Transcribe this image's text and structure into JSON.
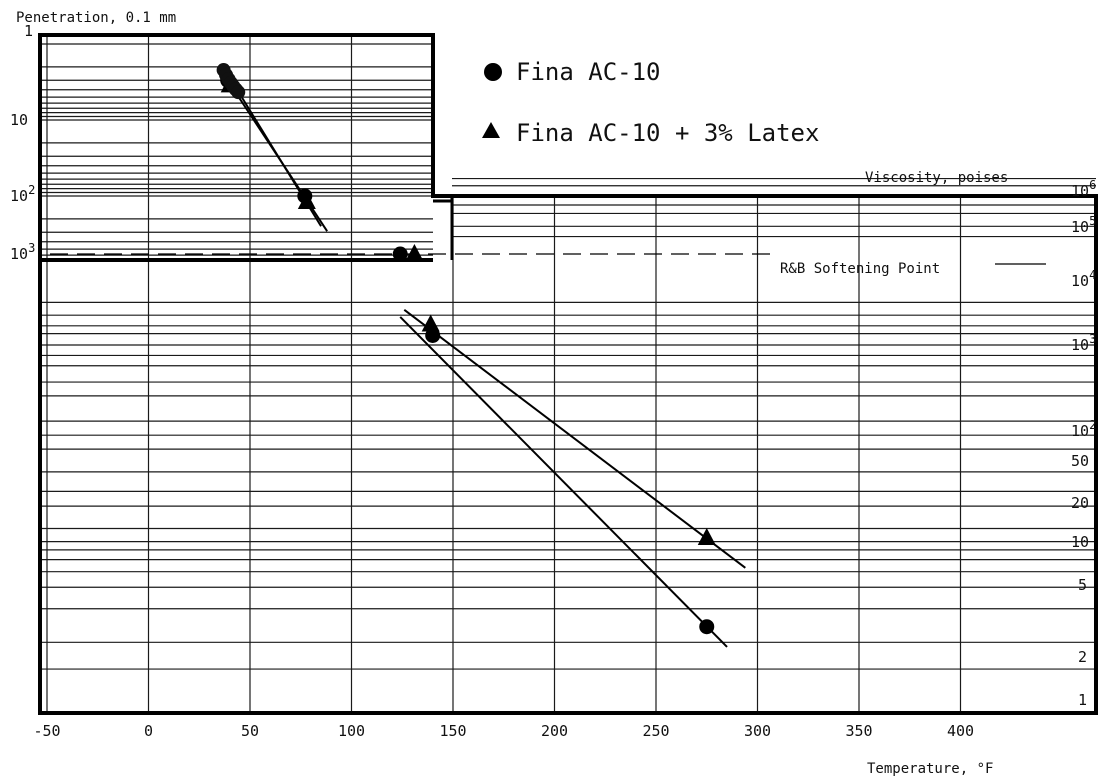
{
  "chart_data": {
    "type": "scatter",
    "title": "",
    "xlabel": "Temperature, °F",
    "ylabel_left": "Penetration, 0.1 mm",
    "ylabel_right": "Viscosity, poises",
    "xlim": [
      -50,
      450
    ],
    "x_ticks": [
      -50,
      0,
      50,
      100,
      150,
      200,
      250,
      300,
      350,
      400
    ],
    "x_tick_labels": [
      "-50",
      "0",
      "50",
      "100",
      "150",
      "200",
      "250",
      "300",
      "350",
      "400"
    ],
    "penetration_axis": {
      "scale": "log",
      "inverted": true,
      "range": [
        1,
        1000
      ],
      "tick_values": [
        1,
        10,
        100,
        1000
      ]
    },
    "viscosity_axis": {
      "scale": "log-log",
      "range": [
        1,
        1000000
      ],
      "tick_values": [
        1000000,
        100000,
        10000,
        1000,
        100,
        50,
        20,
        10,
        5,
        2,
        1
      ]
    },
    "legend": {
      "placement": "top-center",
      "entries": [
        {
          "label": "Fina AC-10",
          "marker": "circle"
        },
        {
          "label": "Fina AC-10 + 3% Latex",
          "marker": "triangle"
        }
      ]
    },
    "annotations": [
      {
        "text": "R&B Softening Point",
        "line_style": "dashed",
        "viscosity": 13000
      }
    ],
    "series": [
      {
        "name": "Fina AC-10",
        "marker": "circle",
        "penetration_points": [
          {
            "x": 39,
            "y": 3
          },
          {
            "x": 77,
            "y": 100
          }
        ],
        "softening_point": {
          "x": 124,
          "y": 13000
        },
        "viscosity_points": [
          {
            "x": 140,
            "y": 1400
          },
          {
            "x": 275,
            "y": 2.4
          }
        ],
        "penetration_fit": [
          {
            "x": 37,
            "y": 2.5
          },
          {
            "x": 88,
            "y": 290
          }
        ],
        "viscosity_fit": [
          {
            "x": 124,
            "y": 2800
          },
          {
            "x": 285,
            "y": 1.9
          }
        ]
      },
      {
        "name": "Fina AC-10 + 3% Latex",
        "marker": "triangle",
        "penetration_points": [
          {
            "x": 40,
            "y": 3.5
          },
          {
            "x": 78,
            "y": 120
          }
        ],
        "softening_point": {
          "x": 131,
          "y": 13000
        },
        "viscosity_points": [
          {
            "x": 139,
            "y": 2100
          },
          {
            "x": 275,
            "y": 8.5
          }
        ],
        "penetration_fit": [
          {
            "x": 39,
            "y": 2.5
          },
          {
            "x": 85,
            "y": 250
          }
        ],
        "viscosity_fit": [
          {
            "x": 126,
            "y": 3700
          },
          {
            "x": 294,
            "y": 5.3
          }
        ]
      }
    ]
  },
  "labels": {
    "penetration": "Penetration, 0.1 mm",
    "viscosity": "Viscosity, poises",
    "temperature": "Temperature, °F",
    "softening": "R&B Softening Point",
    "legend_1": "Fina AC-10",
    "legend_2": "Fina AC-10 + 3% Latex"
  }
}
